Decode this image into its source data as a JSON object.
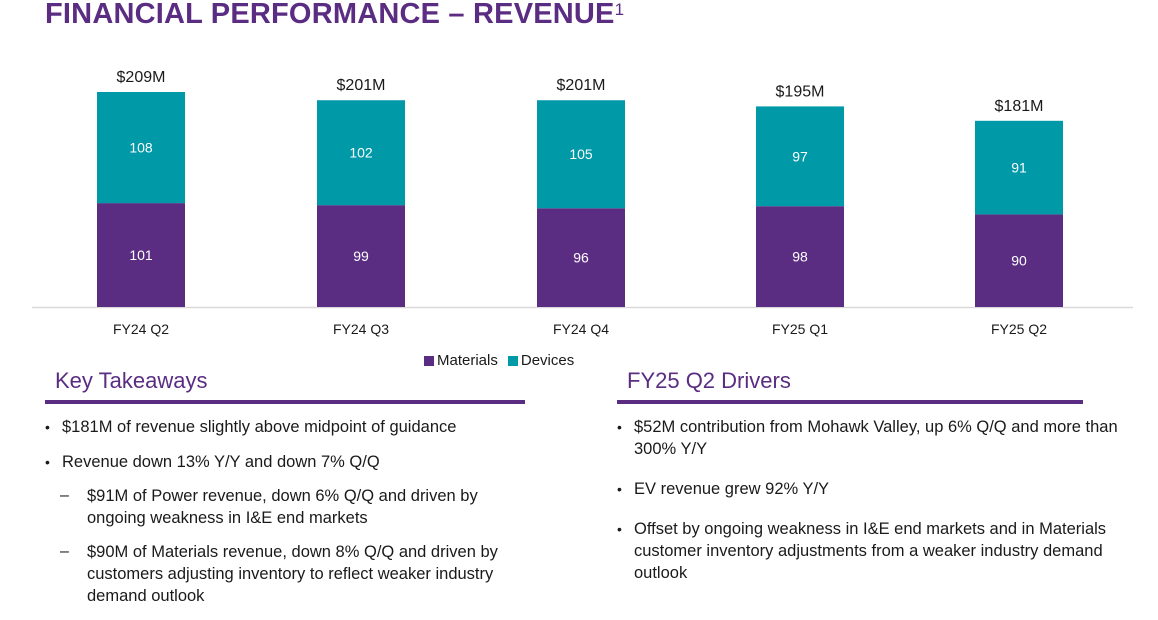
{
  "slide": {
    "title": "FINANCIAL PERFORMANCE – REVENUE",
    "title_superscript": "1"
  },
  "colors": {
    "brand_purple": "#5a2d82",
    "materials": "#5a2d82",
    "devices": "#0099a8"
  },
  "chart_data": {
    "type": "bar",
    "stacked": true,
    "title": "",
    "xlabel": "",
    "ylabel": "",
    "unit": "$M",
    "categories": [
      "FY24 Q2",
      "FY24 Q3",
      "FY24 Q4",
      "FY25 Q1",
      "FY25 Q2"
    ],
    "series": [
      {
        "name": "Materials",
        "color": "#5a2d82",
        "values": [
          101,
          99,
          96,
          98,
          90
        ]
      },
      {
        "name": "Devices",
        "color": "#0099a8",
        "values": [
          108,
          102,
          105,
          97,
          91
        ]
      }
    ],
    "totals": [
      "$209M",
      "$201M",
      "$201M",
      "$195M",
      "$181M"
    ],
    "ylim": [
      0,
      209
    ],
    "grid": false,
    "legend": {
      "placement": "bottom",
      "entries": [
        "Materials",
        "Devices"
      ]
    }
  },
  "key_takeaways": {
    "heading": "Key Takeaways",
    "bullets": [
      "$181M of revenue slightly above midpoint of guidance",
      "Revenue down 13% Y/Y and down 7% Q/Q"
    ],
    "sub_bullets": [
      "$91M of Power revenue, down 6% Q/Q and driven by ongoing weakness in I&E end markets",
      "$90M of Materials revenue, down 8% Q/Q and driven by customers adjusting inventory to reflect weaker industry demand outlook"
    ]
  },
  "drivers": {
    "heading": "FY25 Q2 Drivers",
    "bullets": [
      "$52M contribution from Mohawk Valley, up 6% Q/Q and more than 300% Y/Y",
      "EV revenue grew 92% Y/Y",
      "Offset by ongoing weakness in I&E end markets and in Materials customer inventory adjustments from a weaker industry demand outlook"
    ]
  }
}
